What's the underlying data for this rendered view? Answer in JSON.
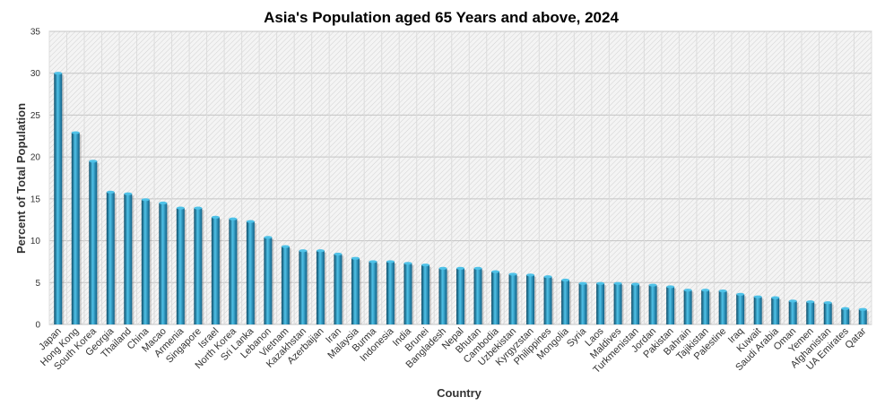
{
  "chart_data": {
    "type": "bar",
    "title": "Asia's  Population aged  65 Years and above, 2024",
    "xlabel": "Country",
    "ylabel": "Percent of Total Population",
    "ylim": [
      0,
      35
    ],
    "yticks": [
      0,
      5,
      10,
      15,
      20,
      25,
      30,
      35
    ],
    "grid": true,
    "legend": "none",
    "bar_color": "#1a7fa8",
    "bar_dark": "#0b4a66",
    "bar_light": "#4fc2e8",
    "categories": [
      "Japan",
      "Hong Kong",
      "South Korea",
      "Georgia",
      "Thailand",
      "China",
      "Macao",
      "Armenia",
      "Singapore",
      "Israel",
      "North Korea",
      "Sri Lanka",
      "Lebanon",
      "Vietnam",
      "Kazakhstan",
      "Azerbaijan",
      "Iran",
      "Malaysia",
      "Burma",
      "Indonesia",
      "India",
      "Brunei",
      "Bangladesh",
      "Nepal",
      "Bhutan",
      "Cambodia",
      "Uzbekistan",
      "Kyrgyzstan",
      "Philippines",
      "Mongolia",
      "Syria",
      "Laos",
      "Maldives",
      "Turkmenistan",
      "Jordan",
      "Pakistan",
      "Bahrain",
      "Tajikistan",
      "Palestine",
      "Iraq",
      "Kuwait",
      "Saudi Arabia",
      "Oman",
      "Yemen",
      "Afghanistan",
      "UA Emirates",
      "Qatar"
    ],
    "values": [
      30.0,
      22.9,
      19.5,
      15.8,
      15.6,
      14.9,
      14.5,
      13.9,
      13.9,
      12.8,
      12.6,
      12.3,
      10.4,
      9.3,
      8.8,
      8.8,
      8.4,
      7.9,
      7.5,
      7.5,
      7.3,
      7.1,
      6.7,
      6.7,
      6.7,
      6.3,
      6.0,
      5.9,
      5.7,
      5.3,
      4.9,
      4.9,
      4.9,
      4.8,
      4.7,
      4.5,
      4.1,
      4.1,
      4.0,
      3.6,
      3.3,
      3.2,
      2.8,
      2.7,
      2.6,
      1.9,
      1.8
    ]
  }
}
